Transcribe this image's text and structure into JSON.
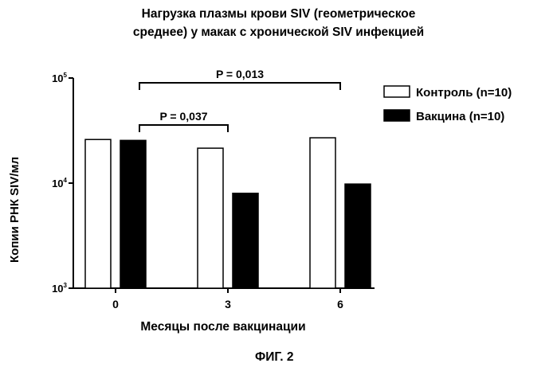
{
  "chart_data": {
    "type": "bar",
    "title_lines": [
      "Нагрузка плазмы крови SIV (геометрическое",
      "среднее) у макак с хронической SIV инфекцией"
    ],
    "xlabel": "Месяцы после вакцинации",
    "ylabel": "Копии РНК SIV/мл",
    "yscale": "log",
    "ylim": [
      1000,
      100000
    ],
    "yticks": [
      {
        "value": 1000,
        "base": "10",
        "exp": "3"
      },
      {
        "value": 10000,
        "base": "10",
        "exp": "4"
      },
      {
        "value": 100000,
        "base": "10",
        "exp": "5"
      }
    ],
    "categories": [
      "0",
      "3",
      "6"
    ],
    "series": [
      {
        "name": "Контроль (n=10)",
        "fill": "#ffffff",
        "values": [
          26000,
          21500,
          27000
        ]
      },
      {
        "name": "Вакцина (n=10)",
        "fill": "#000000",
        "values": [
          25500,
          8000,
          9800
        ]
      }
    ],
    "annotations": [
      {
        "text": "P = 0,037",
        "from": 0,
        "to": 1
      },
      {
        "text": "P = 0,013",
        "from": 0,
        "to": 2
      }
    ],
    "legend_position": "top-right"
  },
  "figure_label": "ФИГ. 2"
}
